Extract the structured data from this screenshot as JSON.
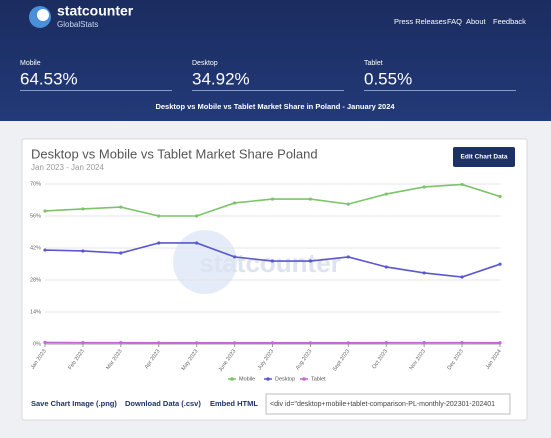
{
  "header": {
    "logo": "statcounter",
    "logo_sub": "GlobalStats",
    "nav": [
      "Press Releases",
      "FAQ",
      "About",
      "Feedback"
    ],
    "stats": [
      {
        "label": "Mobile",
        "value": "64.53%"
      },
      {
        "label": "Desktop",
        "value": "34.92%"
      },
      {
        "label": "Tablet",
        "value": "0.55%"
      }
    ],
    "headline": "Desktop vs Mobile vs Tablet Market Share in Poland - January 2024"
  },
  "button": "Edit Chart Data",
  "chart_data": {
    "type": "line",
    "title": "Desktop vs Mobile vs Tablet Market Share Poland",
    "subtitle": "Jan 2023 - Jan 2024",
    "watermark": "statcounter",
    "categories": [
      "Jan 2023",
      "Feb 2023",
      "Mar 2023",
      "Apr 2023",
      "May 2023",
      "June 2023",
      "July 2023",
      "Aug 2023",
      "Sept 2023",
      "Oct 2023",
      "Nov 2023",
      "Dec 2023",
      "Jan 2024"
    ],
    "series": [
      {
        "name": "Mobile",
        "color": "#7cc36a",
        "values": [
          58.2,
          59.1,
          59.9,
          56.0,
          56.0,
          61.7,
          63.4,
          63.4,
          61.2,
          65.6,
          68.7,
          69.8,
          64.53
        ]
      },
      {
        "name": "Desktop",
        "color": "#5a58cc",
        "values": [
          41.1,
          40.7,
          39.8,
          44.2,
          44.2,
          38.1,
          36.3,
          36.3,
          38.1,
          33.7,
          31.1,
          29.3,
          34.92
        ]
      },
      {
        "name": "Tablet",
        "color": "#c466d6",
        "values": [
          0.7,
          0.6,
          0.6,
          0.5,
          0.5,
          0.5,
          0.5,
          0.5,
          0.5,
          0.6,
          0.6,
          0.6,
          0.55
        ]
      }
    ],
    "ylim": [
      0,
      70
    ],
    "yticks": [
      {
        "value": 0,
        "label": "0%"
      },
      {
        "value": 14,
        "label": "14%"
      },
      {
        "value": 28,
        "label": "28%"
      },
      {
        "value": 42,
        "label": "42%"
      },
      {
        "value": 56,
        "label": "56%"
      },
      {
        "value": 70,
        "label": "70%"
      }
    ],
    "grid": true,
    "legend": "bottom"
  },
  "footer": {
    "links": [
      "Save Chart Image (.png)",
      "Download Data (.csv)",
      "Embed HTML"
    ],
    "embed_code": "<div id=\"desktop+mobile+tablet-comparison-PL-monthly-202301-202401"
  }
}
